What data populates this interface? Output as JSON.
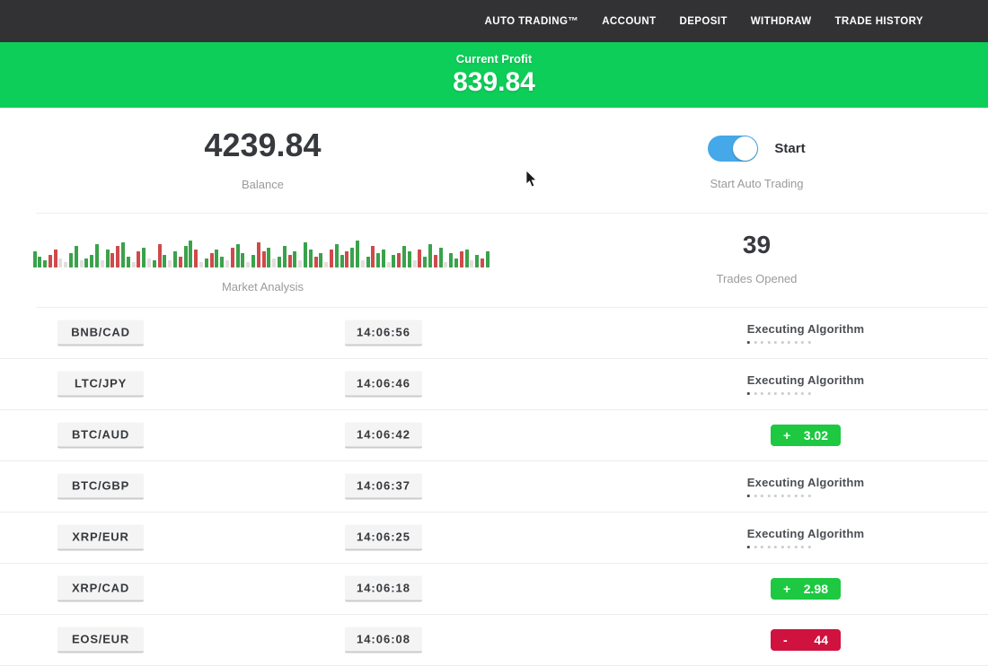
{
  "nav": {
    "items": [
      "AUTO TRADING™",
      "ACCOUNT",
      "DEPOSIT",
      "WITHDRAW",
      "TRADE HISTORY"
    ]
  },
  "profit_banner": {
    "label": "Current Profit",
    "value": "839.84"
  },
  "stats": {
    "balance": {
      "value": "4239.84",
      "label": "Balance"
    },
    "auto_trading": {
      "state": "on",
      "toggle_label": "Start",
      "label": "Start Auto Trading"
    },
    "market_analysis": {
      "label": "Market Analysis"
    },
    "trades_opened": {
      "value": "39",
      "label": "Trades Opened"
    }
  },
  "chart_data": {
    "type": "bar",
    "title": "Market Analysis",
    "note": "decorative mini bar strip, bottom-aligned, colors g=green r=red p=pale",
    "bars": [
      [
        18,
        "g"
      ],
      [
        12,
        "g"
      ],
      [
        8,
        "g"
      ],
      [
        14,
        "r"
      ],
      [
        20,
        "r"
      ],
      [
        10,
        "p"
      ],
      [
        6,
        "p"
      ],
      [
        16,
        "g"
      ],
      [
        24,
        "g"
      ],
      [
        8,
        "p"
      ],
      [
        10,
        "g"
      ],
      [
        14,
        "g"
      ],
      [
        26,
        "g"
      ],
      [
        8,
        "p"
      ],
      [
        20,
        "g"
      ],
      [
        16,
        "r"
      ],
      [
        24,
        "r"
      ],
      [
        28,
        "g"
      ],
      [
        12,
        "g"
      ],
      [
        6,
        "p"
      ],
      [
        18,
        "r"
      ],
      [
        22,
        "g"
      ],
      [
        10,
        "p"
      ],
      [
        8,
        "g"
      ],
      [
        26,
        "r"
      ],
      [
        14,
        "g"
      ],
      [
        8,
        "p"
      ],
      [
        18,
        "g"
      ],
      [
        12,
        "r"
      ],
      [
        24,
        "g"
      ],
      [
        30,
        "g"
      ],
      [
        20,
        "r"
      ],
      [
        6,
        "p"
      ],
      [
        10,
        "g"
      ],
      [
        16,
        "r"
      ],
      [
        20,
        "g"
      ],
      [
        12,
        "g"
      ],
      [
        8,
        "p"
      ],
      [
        22,
        "r"
      ],
      [
        26,
        "g"
      ],
      [
        16,
        "g"
      ],
      [
        6,
        "p"
      ],
      [
        14,
        "g"
      ],
      [
        28,
        "r"
      ],
      [
        18,
        "r"
      ],
      [
        22,
        "g"
      ],
      [
        10,
        "p"
      ],
      [
        12,
        "g"
      ],
      [
        24,
        "g"
      ],
      [
        14,
        "r"
      ],
      [
        18,
        "g"
      ],
      [
        8,
        "p"
      ],
      [
        28,
        "g"
      ],
      [
        20,
        "g"
      ],
      [
        12,
        "r"
      ],
      [
        16,
        "g"
      ],
      [
        6,
        "p"
      ],
      [
        20,
        "r"
      ],
      [
        26,
        "g"
      ],
      [
        14,
        "g"
      ],
      [
        18,
        "r"
      ],
      [
        22,
        "g"
      ],
      [
        30,
        "g"
      ],
      [
        8,
        "p"
      ],
      [
        12,
        "g"
      ],
      [
        24,
        "r"
      ],
      [
        16,
        "g"
      ],
      [
        20,
        "g"
      ],
      [
        6,
        "p"
      ],
      [
        14,
        "g"
      ],
      [
        16,
        "r"
      ],
      [
        24,
        "g"
      ],
      [
        18,
        "g"
      ],
      [
        8,
        "p"
      ],
      [
        20,
        "r"
      ],
      [
        12,
        "g"
      ],
      [
        26,
        "g"
      ],
      [
        14,
        "r"
      ],
      [
        22,
        "g"
      ],
      [
        6,
        "p"
      ],
      [
        16,
        "g"
      ],
      [
        10,
        "g"
      ],
      [
        18,
        "r"
      ],
      [
        20,
        "g"
      ],
      [
        8,
        "p"
      ],
      [
        14,
        "g"
      ],
      [
        10,
        "r"
      ],
      [
        18,
        "g"
      ]
    ]
  },
  "trades": {
    "executing_label": "Executing Algorithm",
    "progress_dots": 10,
    "rows": [
      {
        "pair": "BNB/CAD",
        "time": "14:06:56",
        "status": "executing"
      },
      {
        "pair": "LTC/JPY",
        "time": "14:06:46",
        "status": "executing"
      },
      {
        "pair": "BTC/AUD",
        "time": "14:06:42",
        "status": "result",
        "sign": "+",
        "value": "3.02"
      },
      {
        "pair": "BTC/GBP",
        "time": "14:06:37",
        "status": "executing"
      },
      {
        "pair": "XRP/EUR",
        "time": "14:06:25",
        "status": "executing"
      },
      {
        "pair": "XRP/CAD",
        "time": "14:06:18",
        "status": "result",
        "sign": "+",
        "value": "2.98"
      },
      {
        "pair": "EOS/EUR",
        "time": "14:06:08",
        "status": "result",
        "sign": "-",
        "value": "44"
      }
    ]
  },
  "colors": {
    "nav_bg": "#323234",
    "banner_green": "#0dce58",
    "positive": "#1ec841",
    "negative": "#d0123f",
    "toggle_blue": "#45a8e8",
    "bar_green": "#3aa24b",
    "bar_red": "#cf4a4c",
    "bar_pale": "#e3dddd"
  }
}
